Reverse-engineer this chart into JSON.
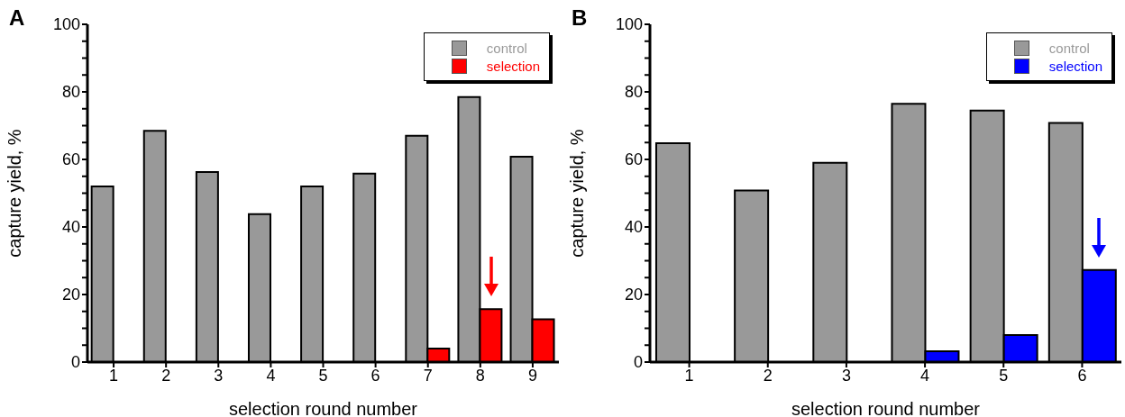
{
  "chart_data": [
    {
      "type": "bar",
      "title": "A",
      "xlabel": "selection round number",
      "ylabel": "capture yield, %",
      "categories": [
        "1",
        "2",
        "3",
        "4",
        "5",
        "6",
        "7",
        "8",
        "9"
      ],
      "series": [
        {
          "name": "control",
          "color": "#999999",
          "values": [
            52,
            68.5,
            56.3,
            43.8,
            52,
            55.8,
            67,
            78.5,
            60.8
          ]
        },
        {
          "name": "selection",
          "color": "#ff0000",
          "values": [
            0,
            0,
            0,
            0,
            0,
            0,
            4,
            15.7,
            12.7
          ]
        }
      ],
      "ylim": [
        0,
        100
      ],
      "yticks": [
        0,
        {
          "value": 5,
          "label": null
        },
        {
          "value": 10,
          "label": null
        },
        {
          "value": 15,
          "label": null
        },
        20,
        {
          "value": 25,
          "label": null
        },
        {
          "value": 30,
          "label": null
        },
        {
          "value": 35,
          "label": null
        },
        40,
        {
          "value": 45,
          "label": null
        },
        {
          "value": 50,
          "label": null
        },
        {
          "value": 55,
          "label": null
        },
        60,
        {
          "value": 65,
          "label": null
        },
        {
          "value": 70,
          "label": null
        },
        {
          "value": 75,
          "label": null
        },
        80,
        {
          "value": 85,
          "label": null
        },
        {
          "value": 90,
          "label": null
        },
        {
          "value": 95,
          "label": null
        },
        100
      ],
      "grid": false,
      "legend": "top right"
    },
    {
      "type": "bar",
      "title": "B",
      "xlabel": "selection round number",
      "ylabel": "capture yield, %",
      "categories": [
        "1",
        "2",
        "3",
        "4",
        "5",
        "6"
      ],
      "series": [
        {
          "name": "control",
          "color": "#999999",
          "values": [
            64.8,
            50.8,
            59,
            76.5,
            74.5,
            70.8
          ]
        },
        {
          "name": "selection",
          "color": "#0000ff",
          "values": [
            0,
            0,
            0,
            3.2,
            8,
            27.3
          ]
        }
      ],
      "ylim": [
        0,
        100
      ],
      "yticks": [
        0,
        {
          "value": 5,
          "label": null
        },
        {
          "value": 10,
          "label": null
        },
        {
          "value": 15,
          "label": null
        },
        20,
        {
          "value": 25,
          "label": null
        },
        {
          "value": 30,
          "label": null
        },
        {
          "value": 35,
          "label": null
        },
        40,
        {
          "value": 45,
          "label": null
        },
        {
          "value": 50,
          "label": null
        },
        {
          "value": 55,
          "label": null
        },
        60,
        {
          "value": 65,
          "label": null
        },
        {
          "value": 70,
          "label": null
        },
        {
          "value": 75,
          "label": null
        },
        80,
        {
          "value": 85,
          "label": null
        },
        {
          "value": 90,
          "label": null
        },
        {
          "value": 95,
          "label": null
        },
        100
      ],
      "grid": false,
      "legend": "top right"
    }
  ]
}
